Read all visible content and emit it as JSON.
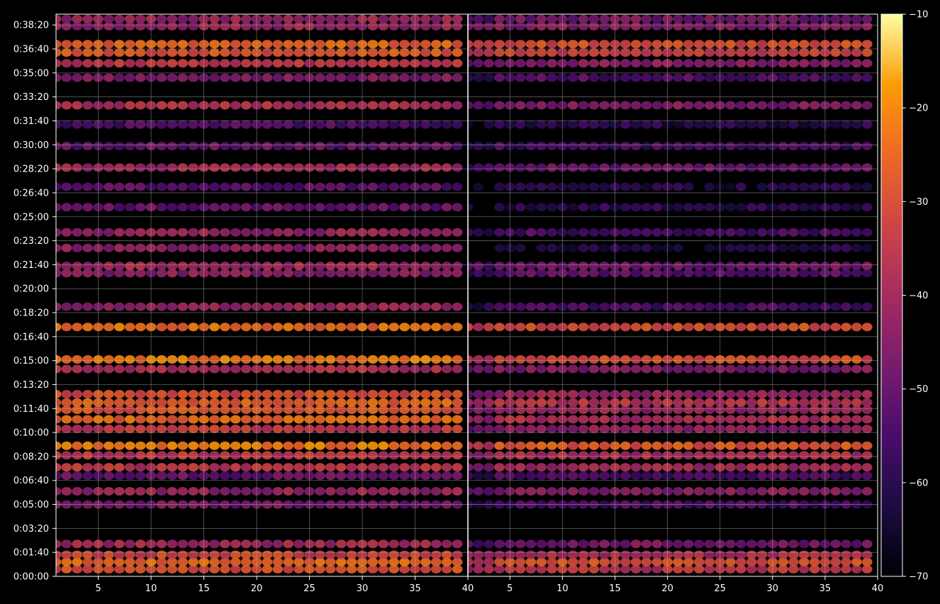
{
  "chart_data": {
    "type": "heatmap",
    "title": "",
    "panels": [
      {
        "name": "left",
        "xticks": [
          5,
          10,
          15,
          20,
          25,
          30,
          35,
          40
        ],
        "xlim": [
          1,
          40
        ]
      },
      {
        "name": "right",
        "xticks": [
          5,
          10,
          15,
          20,
          25,
          30,
          35,
          40
        ],
        "xlim": [
          1,
          40
        ]
      }
    ],
    "x_tick_labels": [
      "5",
      "10",
      "15",
      "20",
      "25",
      "30",
      "35",
      "40"
    ],
    "y_tick_labels": [
      "0:00:00",
      "0:01:40",
      "0:03:20",
      "0:05:00",
      "0:06:40",
      "0:08:20",
      "0:10:00",
      "0:11:40",
      "0:13:20",
      "0:15:00",
      "0:16:40",
      "0:18:20",
      "0:20:00",
      "0:21:40",
      "0:23:20",
      "0:25:00",
      "0:26:40",
      "0:28:20",
      "0:30:00",
      "0:31:40",
      "0:33:20",
      "0:35:00",
      "0:36:40",
      "0:38:20"
    ],
    "y_ticks_seconds": [
      0,
      100,
      200,
      300,
      400,
      500,
      600,
      700,
      800,
      900,
      1000,
      1100,
      1200,
      1300,
      1400,
      1500,
      1600,
      1700,
      1800,
      1900,
      2000,
      2100,
      2200,
      2300
    ],
    "ylim_seconds": [
      0,
      2345
    ],
    "colorbar": {
      "colormap": "inferno",
      "min": -70,
      "max": -10,
      "ticks": [
        -70,
        -60,
        -50,
        -40,
        -30,
        -20,
        -10
      ],
      "tick_labels": [
        "−70",
        "−60",
        "−50",
        "−40",
        "−30",
        "−20",
        "−10"
      ]
    },
    "grid": true,
    "bands": [
      {
        "t": 30,
        "left": -30,
        "right": -36
      },
      {
        "t": 60,
        "left": -25,
        "right": -28
      },
      {
        "t": 90,
        "left": -32,
        "right": -38
      },
      {
        "t": 135,
        "left": -40,
        "right": -48
      },
      {
        "t": 300,
        "left": -48,
        "right": -55
      },
      {
        "t": 355,
        "left": -42,
        "right": -45
      },
      {
        "t": 420,
        "left": -50,
        "right": -55
      },
      {
        "t": 455,
        "left": -36,
        "right": -40
      },
      {
        "t": 505,
        "left": -35,
        "right": -38
      },
      {
        "t": 545,
        "left": -22,
        "right": -28
      },
      {
        "t": 615,
        "left": -34,
        "right": -44
      },
      {
        "t": 655,
        "left": -25,
        "right": -38
      },
      {
        "t": 695,
        "left": -28,
        "right": -42
      },
      {
        "t": 725,
        "left": -26,
        "right": -36
      },
      {
        "t": 760,
        "left": -30,
        "right": -42
      },
      {
        "t": 865,
        "left": -38,
        "right": -46
      },
      {
        "t": 905,
        "left": -22,
        "right": -30
      },
      {
        "t": 1040,
        "left": -24,
        "right": -30
      },
      {
        "t": 1125,
        "left": -42,
        "right": -55
      },
      {
        "t": 1265,
        "left": -44,
        "right": -52
      },
      {
        "t": 1295,
        "left": -40,
        "right": -48
      },
      {
        "t": 1370,
        "left": -44,
        "right": -62
      },
      {
        "t": 1435,
        "left": -42,
        "right": -55
      },
      {
        "t": 1540,
        "left": -50,
        "right": -60
      },
      {
        "t": 1625,
        "left": -52,
        "right": -62
      },
      {
        "t": 1705,
        "left": -40,
        "right": -50
      },
      {
        "t": 1795,
        "left": -50,
        "right": -56
      },
      {
        "t": 1885,
        "left": -54,
        "right": -60
      },
      {
        "t": 1965,
        "left": -38,
        "right": -46
      },
      {
        "t": 2080,
        "left": -46,
        "right": -54
      },
      {
        "t": 2140,
        "left": -36,
        "right": -44
      },
      {
        "t": 2185,
        "left": -28,
        "right": -33
      },
      {
        "t": 2220,
        "left": -26,
        "right": -30
      },
      {
        "t": 2295,
        "left": -42,
        "right": -45
      },
      {
        "t": 2325,
        "left": -42,
        "right": -48
      }
    ]
  }
}
